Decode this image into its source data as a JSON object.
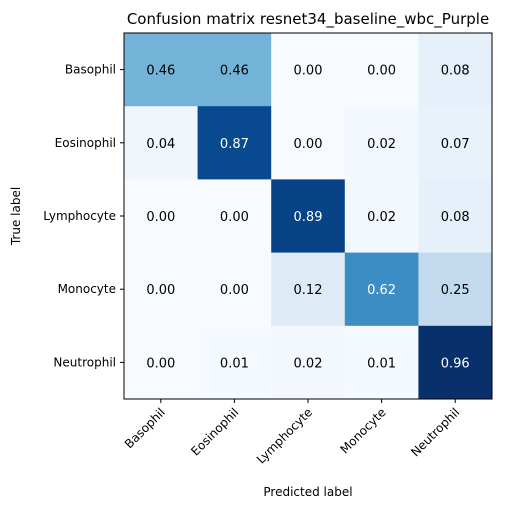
{
  "chart_data": {
    "type": "heatmap",
    "title": "Confusion matrix resnet34_baseline_wbc_Purple",
    "xlabel": "Predicted label",
    "ylabel": "True label",
    "x_categories": [
      "Basophil",
      "Eosinophil",
      "Lymphocyte",
      "Monocyte",
      "Neutrophil"
    ],
    "y_categories": [
      "Basophil",
      "Eosinophil",
      "Lymphocyte",
      "Monocyte",
      "Neutrophil"
    ],
    "values": [
      [
        0.46,
        0.46,
        0.0,
        0.0,
        0.08
      ],
      [
        0.04,
        0.87,
        0.0,
        0.02,
        0.07
      ],
      [
        0.0,
        0.0,
        0.89,
        0.02,
        0.08
      ],
      [
        0.0,
        0.0,
        0.12,
        0.62,
        0.25
      ],
      [
        0.0,
        0.01,
        0.02,
        0.01,
        0.96
      ]
    ],
    "value_labels": [
      [
        "0.46",
        "0.46",
        "0.00",
        "0.00",
        "0.08"
      ],
      [
        "0.04",
        "0.87",
        "0.00",
        "0.02",
        "0.07"
      ],
      [
        "0.00",
        "0.00",
        "0.89",
        "0.02",
        "0.08"
      ],
      [
        "0.00",
        "0.00",
        "0.12",
        "0.62",
        "0.25"
      ],
      [
        "0.00",
        "0.01",
        "0.02",
        "0.01",
        "0.96"
      ]
    ],
    "colormap": "Blues",
    "vlim": [
      0,
      0.96
    ],
    "grid": false,
    "x_tick_rotation": "45deg"
  }
}
